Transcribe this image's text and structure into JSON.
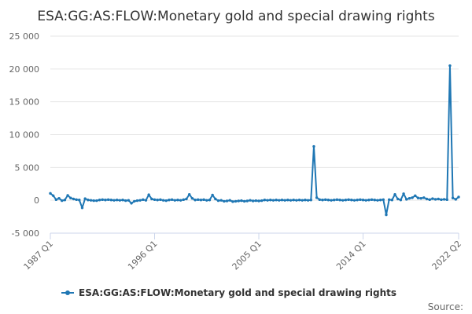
{
  "chart_data": {
    "type": "line",
    "title": "ESA:GG:AS:FLOW:Monetary gold and special drawing rights",
    "xlabel": "",
    "ylabel": "",
    "ylim": [
      -5000,
      25000
    ],
    "yticks": [
      "25 000",
      "20 000",
      "15 000",
      "10 000",
      "5 000",
      "0",
      "-5 000"
    ],
    "ytick_values": [
      25000,
      20000,
      15000,
      10000,
      5000,
      0,
      -5000
    ],
    "xlim": [
      "1987 Q1",
      "2022 Q2"
    ],
    "xticks": [
      "1987 Q1",
      "1996 Q1",
      "2005 Q1",
      "2014 Q1",
      "2022 Q2"
    ],
    "grid": true,
    "legend_position": "bottom-center",
    "source_label": "Source:",
    "color": "#1f77b4",
    "series": [
      {
        "name": "ESA:GG:AS:FLOW:Monetary gold and special drawing rights",
        "points": [
          [
            "1987 Q1",
            1050
          ],
          [
            "1987 Q2",
            700
          ],
          [
            "1987 Q3",
            100
          ],
          [
            "1987 Q4",
            300
          ],
          [
            "1988 Q1",
            -50
          ],
          [
            "1988 Q2",
            50
          ],
          [
            "1988 Q3",
            750
          ],
          [
            "1988 Q4",
            350
          ],
          [
            "1989 Q1",
            200
          ],
          [
            "1989 Q2",
            100
          ],
          [
            "1989 Q3",
            50
          ],
          [
            "1989 Q4",
            -1150
          ],
          [
            "1990 Q1",
            250
          ],
          [
            "1990 Q2",
            50
          ],
          [
            "1990 Q3",
            0
          ],
          [
            "1990 Q4",
            -50
          ],
          [
            "1991 Q1",
            -50
          ],
          [
            "1991 Q2",
            50
          ],
          [
            "1991 Q3",
            100
          ],
          [
            "1991 Q4",
            50
          ],
          [
            "1992 Q1",
            100
          ],
          [
            "1992 Q2",
            50
          ],
          [
            "1992 Q3",
            0
          ],
          [
            "1992 Q4",
            50
          ],
          [
            "1993 Q1",
            0
          ],
          [
            "1993 Q2",
            50
          ],
          [
            "1993 Q3",
            -50
          ],
          [
            "1993 Q4",
            0
          ],
          [
            "1994 Q1",
            -450
          ],
          [
            "1994 Q2",
            -150
          ],
          [
            "1994 Q3",
            -50
          ],
          [
            "1994 Q4",
            0
          ],
          [
            "1995 Q1",
            100
          ],
          [
            "1995 Q2",
            0
          ],
          [
            "1995 Q3",
            850
          ],
          [
            "1995 Q4",
            200
          ],
          [
            "1996 Q1",
            100
          ],
          [
            "1996 Q2",
            50
          ],
          [
            "1996 Q3",
            100
          ],
          [
            "1996 Q4",
            0
          ],
          [
            "1997 Q1",
            -50
          ],
          [
            "1997 Q2",
            50
          ],
          [
            "1997 Q3",
            100
          ],
          [
            "1997 Q4",
            0
          ],
          [
            "1998 Q1",
            50
          ],
          [
            "1998 Q2",
            0
          ],
          [
            "1998 Q3",
            100
          ],
          [
            "1998 Q4",
            200
          ],
          [
            "1999 Q1",
            900
          ],
          [
            "1999 Q2",
            300
          ],
          [
            "1999 Q3",
            50
          ],
          [
            "1999 Q4",
            100
          ],
          [
            "2000 Q1",
            50
          ],
          [
            "2000 Q2",
            100
          ],
          [
            "2000 Q3",
            0
          ],
          [
            "2000 Q4",
            50
          ],
          [
            "2001 Q1",
            800
          ],
          [
            "2001 Q2",
            200
          ],
          [
            "2001 Q3",
            -50
          ],
          [
            "2001 Q4",
            0
          ],
          [
            "2002 Q1",
            -150
          ],
          [
            "2002 Q2",
            -100
          ],
          [
            "2002 Q3",
            0
          ],
          [
            "2002 Q4",
            -200
          ],
          [
            "2003 Q1",
            -150
          ],
          [
            "2003 Q2",
            -100
          ],
          [
            "2003 Q3",
            -50
          ],
          [
            "2003 Q4",
            -150
          ],
          [
            "2004 Q1",
            -100
          ],
          [
            "2004 Q2",
            0
          ],
          [
            "2004 Q3",
            -100
          ],
          [
            "2004 Q4",
            -50
          ],
          [
            "2005 Q1",
            -100
          ],
          [
            "2005 Q2",
            -50
          ],
          [
            "2005 Q3",
            50
          ],
          [
            "2005 Q4",
            0
          ],
          [
            "2006 Q1",
            50
          ],
          [
            "2006 Q2",
            0
          ],
          [
            "2006 Q3",
            50
          ],
          [
            "2006 Q4",
            0
          ],
          [
            "2007 Q1",
            50
          ],
          [
            "2007 Q2",
            0
          ],
          [
            "2007 Q3",
            50
          ],
          [
            "2007 Q4",
            0
          ],
          [
            "2008 Q1",
            50
          ],
          [
            "2008 Q2",
            0
          ],
          [
            "2008 Q3",
            50
          ],
          [
            "2008 Q4",
            0
          ],
          [
            "2009 Q1",
            50
          ],
          [
            "2009 Q2",
            0
          ],
          [
            "2009 Q3",
            50
          ],
          [
            "2009 Q4",
            8200
          ],
          [
            "2010 Q1",
            400
          ],
          [
            "2010 Q2",
            100
          ],
          [
            "2010 Q3",
            50
          ],
          [
            "2010 Q4",
            100
          ],
          [
            "2011 Q1",
            50
          ],
          [
            "2011 Q2",
            0
          ],
          [
            "2011 Q3",
            50
          ],
          [
            "2011 Q4",
            100
          ],
          [
            "2012 Q1",
            50
          ],
          [
            "2012 Q2",
            0
          ],
          [
            "2012 Q3",
            50
          ],
          [
            "2012 Q4",
            100
          ],
          [
            "2013 Q1",
            50
          ],
          [
            "2013 Q2",
            0
          ],
          [
            "2013 Q3",
            50
          ],
          [
            "2013 Q4",
            100
          ],
          [
            "2014 Q1",
            50
          ],
          [
            "2014 Q2",
            0
          ],
          [
            "2014 Q3",
            50
          ],
          [
            "2014 Q4",
            100
          ],
          [
            "2015 Q1",
            50
          ],
          [
            "2015 Q2",
            0
          ],
          [
            "2015 Q3",
            50
          ],
          [
            "2015 Q4",
            100
          ],
          [
            "2016 Q1",
            -2200
          ],
          [
            "2016 Q2",
            100
          ],
          [
            "2016 Q3",
            50
          ],
          [
            "2016 Q4",
            900
          ],
          [
            "2017 Q1",
            200
          ],
          [
            "2017 Q2",
            50
          ],
          [
            "2017 Q3",
            1000
          ],
          [
            "2017 Q4",
            150
          ],
          [
            "2018 Q1",
            300
          ],
          [
            "2018 Q2",
            400
          ],
          [
            "2018 Q3",
            700
          ],
          [
            "2018 Q4",
            350
          ],
          [
            "2019 Q1",
            300
          ],
          [
            "2019 Q2",
            400
          ],
          [
            "2019 Q3",
            200
          ],
          [
            "2019 Q4",
            100
          ],
          [
            "2020 Q1",
            250
          ],
          [
            "2020 Q2",
            150
          ],
          [
            "2020 Q3",
            200
          ],
          [
            "2020 Q4",
            100
          ],
          [
            "2021 Q1",
            150
          ],
          [
            "2021 Q2",
            100
          ],
          [
            "2021 Q3",
            20500
          ],
          [
            "2021 Q4",
            350
          ],
          [
            "2022 Q1",
            150
          ],
          [
            "2022 Q2",
            500
          ]
        ]
      }
    ]
  }
}
